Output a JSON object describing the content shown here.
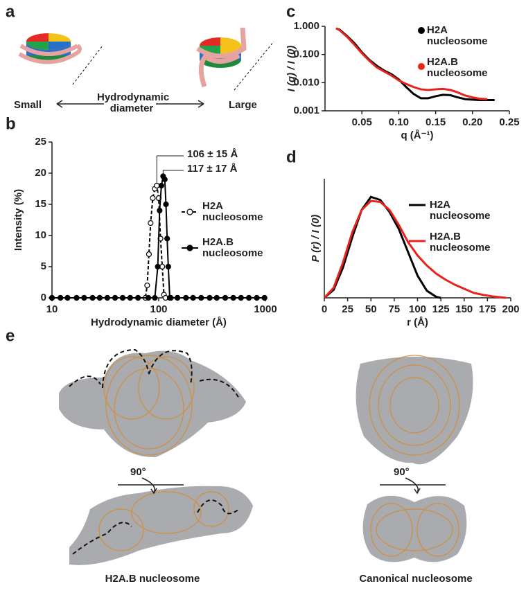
{
  "panel_labels": [
    "a",
    "b",
    "c",
    "d",
    "e"
  ],
  "panel_a": {
    "small": "Small",
    "axis": "Hydrodynamic diameter",
    "large": "Large"
  },
  "chart_data": [
    {
      "type": "line",
      "xlabel": "Hydrodynamic diameter (Å)",
      "ylabel": "Intensity (%)",
      "xlog": true,
      "xlim": [
        10,
        1000
      ],
      "xticks": [
        10,
        100,
        1000
      ],
      "ylim": [
        0,
        25
      ],
      "yticks": [
        0,
        5,
        10,
        15,
        20,
        25
      ],
      "legend_style": "marker",
      "annotations": [
        "106 ± 15 Å",
        "117 ± 17 Å"
      ],
      "series": [
        {
          "name": "H2A nucleosome",
          "color": "#000000",
          "marker": "open",
          "dashed": true,
          "x": [
            10,
            12,
            14,
            17,
            20,
            24,
            28,
            33,
            39,
            46,
            54,
            64,
            75,
            78,
            81,
            84,
            88,
            92,
            96,
            100,
            104,
            108,
            112,
            116,
            130,
            150,
            180,
            210,
            250,
            300,
            350,
            420,
            500,
            590,
            700,
            830,
            980
          ],
          "values": [
            0,
            0,
            0,
            0,
            0,
            0,
            0,
            0,
            0,
            0,
            0,
            0,
            0,
            2,
            7,
            12,
            16,
            17.5,
            18,
            16,
            9.5,
            5,
            0.5,
            0,
            0,
            0,
            0,
            0,
            0,
            0,
            0,
            0,
            0,
            0,
            0,
            0,
            0
          ]
        },
        {
          "name": "H2A.B nucleosome",
          "color": "#000000",
          "marker": "filled",
          "dashed": false,
          "x": [
            10,
            12,
            14,
            17,
            20,
            24,
            28,
            33,
            39,
            46,
            54,
            64,
            80,
            92,
            98,
            102,
            106,
            110,
            114,
            117,
            120,
            123,
            127,
            150,
            180,
            210,
            250,
            300,
            350,
            420,
            500,
            590,
            700,
            830,
            980
          ],
          "values": [
            0,
            0,
            0,
            0,
            0,
            0,
            0,
            0,
            0,
            0,
            0,
            0,
            0,
            0,
            5,
            14,
            18,
            19.5,
            19,
            15,
            9.5,
            5,
            0,
            0,
            0,
            0,
            0,
            0,
            0,
            0,
            0,
            0,
            0,
            0,
            0
          ]
        }
      ]
    },
    {
      "type": "line",
      "xlabel": "q (Å⁻¹)",
      "ylabel": "I (q) / I (0)",
      "ylog": true,
      "xlim": [
        0,
        0.25
      ],
      "xticks": [
        0.05,
        {
          "value": 0.1,
          "label": "0.10"
        },
        0.15,
        {
          "value": 0.2,
          "label": "0.20"
        },
        0.25
      ],
      "ylim": [
        0.001,
        1
      ],
      "yticks": [
        0.001,
        {
          "value": 0.01,
          "label": "0.010"
        },
        {
          "value": 0.1,
          "label": "0.100"
        },
        {
          "value": 1,
          "label": "1.000"
        }
      ],
      "legend_style": "dot",
      "series": [
        {
          "name": "H2A nucleosome",
          "color": "#000000",
          "x": [
            0.015,
            0.02,
            0.03,
            0.04,
            0.05,
            0.06,
            0.07,
            0.08,
            0.09,
            0.1,
            0.11,
            0.12,
            0.13,
            0.14,
            0.15,
            0.16,
            0.17,
            0.18,
            0.19,
            0.2,
            0.21,
            0.22,
            0.23
          ],
          "values": [
            0.85,
            0.75,
            0.45,
            0.25,
            0.12,
            0.065,
            0.04,
            0.027,
            0.02,
            0.013,
            0.007,
            0.004,
            0.0028,
            0.0028,
            0.0033,
            0.0037,
            0.0036,
            0.003,
            0.0026,
            0.0025,
            0.0024,
            0.0024,
            0.0024
          ]
        },
        {
          "name": "H2A.B nucleosome",
          "color": "#e8231c",
          "x": [
            0.015,
            0.02,
            0.03,
            0.04,
            0.05,
            0.06,
            0.07,
            0.08,
            0.09,
            0.1,
            0.11,
            0.12,
            0.13,
            0.14,
            0.15,
            0.16,
            0.17,
            0.18,
            0.19,
            0.2,
            0.21,
            0.22
          ],
          "values": [
            0.85,
            0.72,
            0.42,
            0.22,
            0.11,
            0.06,
            0.035,
            0.025,
            0.018,
            0.012,
            0.009,
            0.007,
            0.0058,
            0.0055,
            0.0058,
            0.006,
            0.0055,
            0.0045,
            0.0035,
            0.003,
            0.0027,
            0.0026
          ]
        }
      ]
    },
    {
      "type": "line",
      "xlabel": "r (Å)",
      "ylabel": "P (r) / I (0)",
      "xlim": [
        0,
        200
      ],
      "xticks": [
        0,
        25,
        50,
        75,
        100,
        125,
        150,
        175,
        200
      ],
      "ylim": [
        0,
        1.18
      ],
      "legend_style": "line",
      "series": [
        {
          "name": "H2A nucleosome",
          "color": "#000000",
          "x": [
            0,
            10,
            20,
            30,
            40,
            50,
            60,
            70,
            80,
            90,
            100,
            110,
            120,
            125
          ],
          "values": [
            0,
            0.08,
            0.3,
            0.6,
            0.87,
            1,
            0.97,
            0.85,
            0.68,
            0.45,
            0.22,
            0.07,
            0.01,
            0
          ]
        },
        {
          "name": "H2A.B nucleosome",
          "color": "#e8231c",
          "x": [
            0,
            10,
            20,
            30,
            40,
            50,
            60,
            70,
            80,
            90,
            100,
            110,
            120,
            130,
            140,
            150,
            160,
            170,
            180,
            190,
            195
          ],
          "values": [
            0,
            0.1,
            0.35,
            0.65,
            0.87,
            0.96,
            0.95,
            0.87,
            0.72,
            0.55,
            0.42,
            0.32,
            0.24,
            0.18,
            0.13,
            0.09,
            0.05,
            0.03,
            0.015,
            0.005,
            0
          ]
        }
      ]
    }
  ],
  "panel_e": {
    "rotation": [
      "90°",
      "90°"
    ],
    "captions": [
      "H2A.B nucleosome",
      "Canonical nucleosome"
    ]
  }
}
